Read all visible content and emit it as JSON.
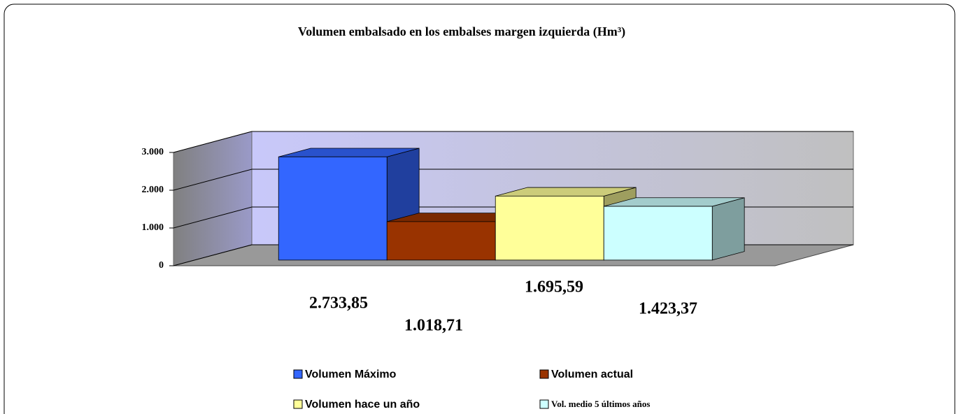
{
  "chart_data": {
    "type": "bar3d",
    "title": "Volumen embalsado en los embalses margen izquierda (Hm³)",
    "ylim": [
      0,
      3000
    ],
    "yticks": [
      0,
      {
        "value": 1000,
        "label": "1.000"
      },
      {
        "value": 2000,
        "label": "2.000"
      },
      {
        "value": 3000,
        "label": "3.000"
      }
    ],
    "grid": true,
    "series": [
      {
        "name": "Volumen Máximo",
        "color": "#3366ff",
        "values": [
          2733.85
        ],
        "value_labels": [
          "2.733,85"
        ]
      },
      {
        "name": "Volumen actual",
        "color": "#993300",
        "values": [
          1018.71
        ],
        "value_labels": [
          "1.018,71"
        ]
      },
      {
        "name": "Volumen hace un año",
        "color": "#ffff99",
        "values": [
          1695.59
        ],
        "value_labels": [
          "1.695,59"
        ]
      },
      {
        "name": "Vol. medio 5 últimos años",
        "color": "#ccffff",
        "values": [
          1423.37
        ],
        "value_labels": [
          "1.423,37"
        ]
      }
    ]
  }
}
